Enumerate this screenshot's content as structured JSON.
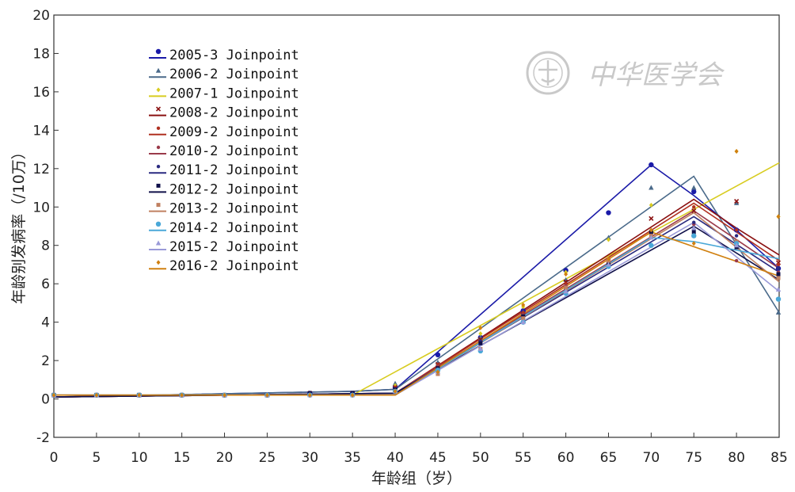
{
  "chart_data": {
    "type": "line",
    "title": "",
    "xlabel": "年龄组（岁）",
    "ylabel": "年龄别发病率（/10万）",
    "xlim": [
      0,
      85
    ],
    "ylim": [
      -2,
      20
    ],
    "x_ticks": [
      "0",
      "5",
      "10",
      "15",
      "20",
      "25",
      "30",
      "35",
      "40",
      "45",
      "50",
      "55",
      "60",
      "65",
      "70",
      "75",
      "80",
      "85"
    ],
    "y_ticks": [
      "-2",
      "0",
      "2",
      "4",
      "6",
      "8",
      "10",
      "12",
      "14",
      "16",
      "18",
      "20"
    ],
    "grid": false,
    "legend_position": "top-left",
    "x": [
      0,
      5,
      10,
      15,
      20,
      25,
      30,
      35,
      40,
      45,
      50,
      55,
      60,
      65,
      70,
      75,
      80,
      85
    ],
    "series": [
      {
        "name": "2005-3 Joinpoint",
        "color": "#1a1aa8",
        "marker": "circle",
        "observed": [
          0.2,
          0.2,
          0.2,
          0.2,
          0.2,
          0.2,
          0.3,
          0.3,
          0.6,
          2.3,
          3.2,
          4.6,
          6.7,
          9.7,
          12.2,
          10.8,
          8.8,
          6.8
        ],
        "joinpoint": [
          [
            0,
            0.1
          ],
          [
            35,
            0.4
          ],
          [
            40,
            0.5
          ],
          [
            70,
            12.2
          ],
          [
            75,
            10.6
          ],
          [
            80,
            8.8
          ],
          [
            85,
            6.8
          ]
        ]
      },
      {
        "name": "2006-2 Joinpoint",
        "color": "#4a6a8a",
        "marker": "triangle",
        "observed": [
          0.2,
          0.2,
          0.2,
          0.2,
          0.2,
          0.2,
          0.3,
          0.3,
          0.8,
          1.9,
          3.2,
          4.5,
          6.2,
          8.4,
          11.0,
          11.0,
          10.2,
          4.5
        ],
        "joinpoint": [
          [
            0,
            0.1
          ],
          [
            35,
            0.4
          ],
          [
            40,
            0.5
          ],
          [
            75,
            11.6
          ],
          [
            85,
            4.5
          ]
        ]
      },
      {
        "name": "2007-1 Joinpoint",
        "color": "#d8cc20",
        "marker": "diamond",
        "observed": [
          0.2,
          0.2,
          0.2,
          0.2,
          0.2,
          0.2,
          0.3,
          0.3,
          0.7,
          1.6,
          3.4,
          4.8,
          6.6,
          8.3,
          10.1,
          10.0,
          12.9,
          9.5
        ],
        "joinpoint": [
          [
            0,
            0.2
          ],
          [
            35,
            0.2
          ],
          [
            85,
            12.3
          ]
        ]
      },
      {
        "name": "2008-2 Joinpoint",
        "color": "#8a1010",
        "marker": "x",
        "observed": [
          0.2,
          0.2,
          0.2,
          0.2,
          0.2,
          0.2,
          0.3,
          0.3,
          0.6,
          1.8,
          3.1,
          4.4,
          6.1,
          7.2,
          9.4,
          9.8,
          10.3,
          7.1
        ],
        "joinpoint": [
          [
            0,
            0.1
          ],
          [
            40,
            0.3
          ],
          [
            75,
            10.4
          ],
          [
            80,
            8.9
          ],
          [
            85,
            7.5
          ]
        ]
      },
      {
        "name": "2009-2 Joinpoint",
        "color": "#b03020",
        "marker": "dot",
        "observed": [
          0.2,
          0.2,
          0.2,
          0.2,
          0.2,
          0.2,
          0.3,
          0.3,
          0.6,
          1.8,
          3.0,
          4.5,
          6.0,
          7.2,
          8.7,
          10.0,
          8.8,
          7.0
        ],
        "joinpoint": [
          [
            0,
            0.1
          ],
          [
            40,
            0.3
          ],
          [
            75,
            10.2
          ],
          [
            80,
            8.7
          ],
          [
            85,
            7.2
          ]
        ]
      },
      {
        "name": "2010-2 Joinpoint",
        "color": "#9a3a4a",
        "marker": "dot",
        "observed": [
          0.2,
          0.2,
          0.2,
          0.2,
          0.2,
          0.2,
          0.3,
          0.3,
          0.5,
          1.7,
          3.0,
          4.4,
          5.9,
          7.1,
          8.6,
          9.1,
          7.2,
          6.6
        ],
        "joinpoint": [
          [
            0,
            0.1
          ],
          [
            40,
            0.3
          ],
          [
            75,
            9.8
          ],
          [
            85,
            6.8
          ]
        ]
      },
      {
        "name": "2011-2 Joinpoint",
        "color": "#2a2a80",
        "marker": "dot",
        "observed": [
          0.2,
          0.2,
          0.2,
          0.2,
          0.2,
          0.2,
          0.3,
          0.3,
          0.5,
          1.6,
          3.0,
          4.3,
          5.8,
          7.0,
          8.7,
          9.2,
          8.5,
          6.8
        ],
        "joinpoint": [
          [
            0,
            0.1
          ],
          [
            40,
            0.3
          ],
          [
            75,
            9.5
          ],
          [
            85,
            6.6
          ]
        ]
      },
      {
        "name": "2012-2 Joinpoint",
        "color": "#10104a",
        "marker": "square",
        "observed": [
          0.2,
          0.2,
          0.2,
          0.2,
          0.2,
          0.2,
          0.3,
          0.3,
          0.5,
          1.6,
          2.9,
          4.3,
          5.8,
          7.0,
          8.7,
          8.7,
          7.9,
          6.5
        ],
        "joinpoint": [
          [
            0,
            0.1
          ],
          [
            40,
            0.3
          ],
          [
            75,
            9.0
          ],
          [
            85,
            6.2
          ]
        ]
      },
      {
        "name": "2013-2 Joinpoint",
        "color": "#c08060",
        "marker": "square",
        "observed": [
          0.2,
          0.2,
          0.2,
          0.2,
          0.2,
          0.2,
          0.2,
          0.2,
          0.4,
          1.3,
          2.6,
          4.2,
          5.8,
          7.2,
          8.5,
          8.5,
          8.2,
          6.3
        ],
        "joinpoint": [
          [
            0,
            0.2
          ],
          [
            40,
            0.2
          ],
          [
            75,
            9.7
          ],
          [
            85,
            6.1
          ]
        ]
      },
      {
        "name": "2014-2 Joinpoint",
        "color": "#4aa8d8",
        "marker": "circle",
        "observed": [
          0.2,
          0.2,
          0.2,
          0.2,
          0.2,
          0.2,
          0.2,
          0.2,
          0.4,
          1.5,
          2.5,
          4.0,
          5.5,
          6.9,
          8.0,
          8.5,
          8.1,
          5.2
        ],
        "joinpoint": [
          [
            0,
            0.2
          ],
          [
            40,
            0.2
          ],
          [
            70,
            8.4
          ],
          [
            75,
            8.2
          ],
          [
            85,
            7.3
          ]
        ]
      },
      {
        "name": "2015-2 Joinpoint",
        "color": "#9a9ad8",
        "marker": "triangle",
        "observed": [
          0.2,
          0.2,
          0.2,
          0.2,
          0.2,
          0.2,
          0.2,
          0.2,
          0.4,
          1.4,
          2.6,
          4.0,
          5.6,
          7.0,
          8.4,
          8.9,
          8.0,
          5.7
        ],
        "joinpoint": [
          [
            0,
            0.2
          ],
          [
            40,
            0.2
          ],
          [
            75,
            9.2
          ],
          [
            85,
            5.6
          ]
        ]
      },
      {
        "name": "2016-2 Joinpoint",
        "color": "#d08010",
        "marker": "diamond",
        "observed": [
          0.2,
          0.2,
          0.2,
          0.2,
          0.2,
          0.2,
          0.2,
          0.2,
          0.4,
          1.4,
          3.7,
          4.9,
          6.5,
          7.3,
          8.8,
          8.1,
          12.9,
          9.5
        ],
        "joinpoint": [
          [
            0,
            0.2
          ],
          [
            40,
            0.2
          ],
          [
            70,
            8.7
          ],
          [
            85,
            6.4
          ]
        ]
      }
    ]
  },
  "watermark": {
    "text": "中华医学会",
    "color": "#c9c9c9"
  }
}
